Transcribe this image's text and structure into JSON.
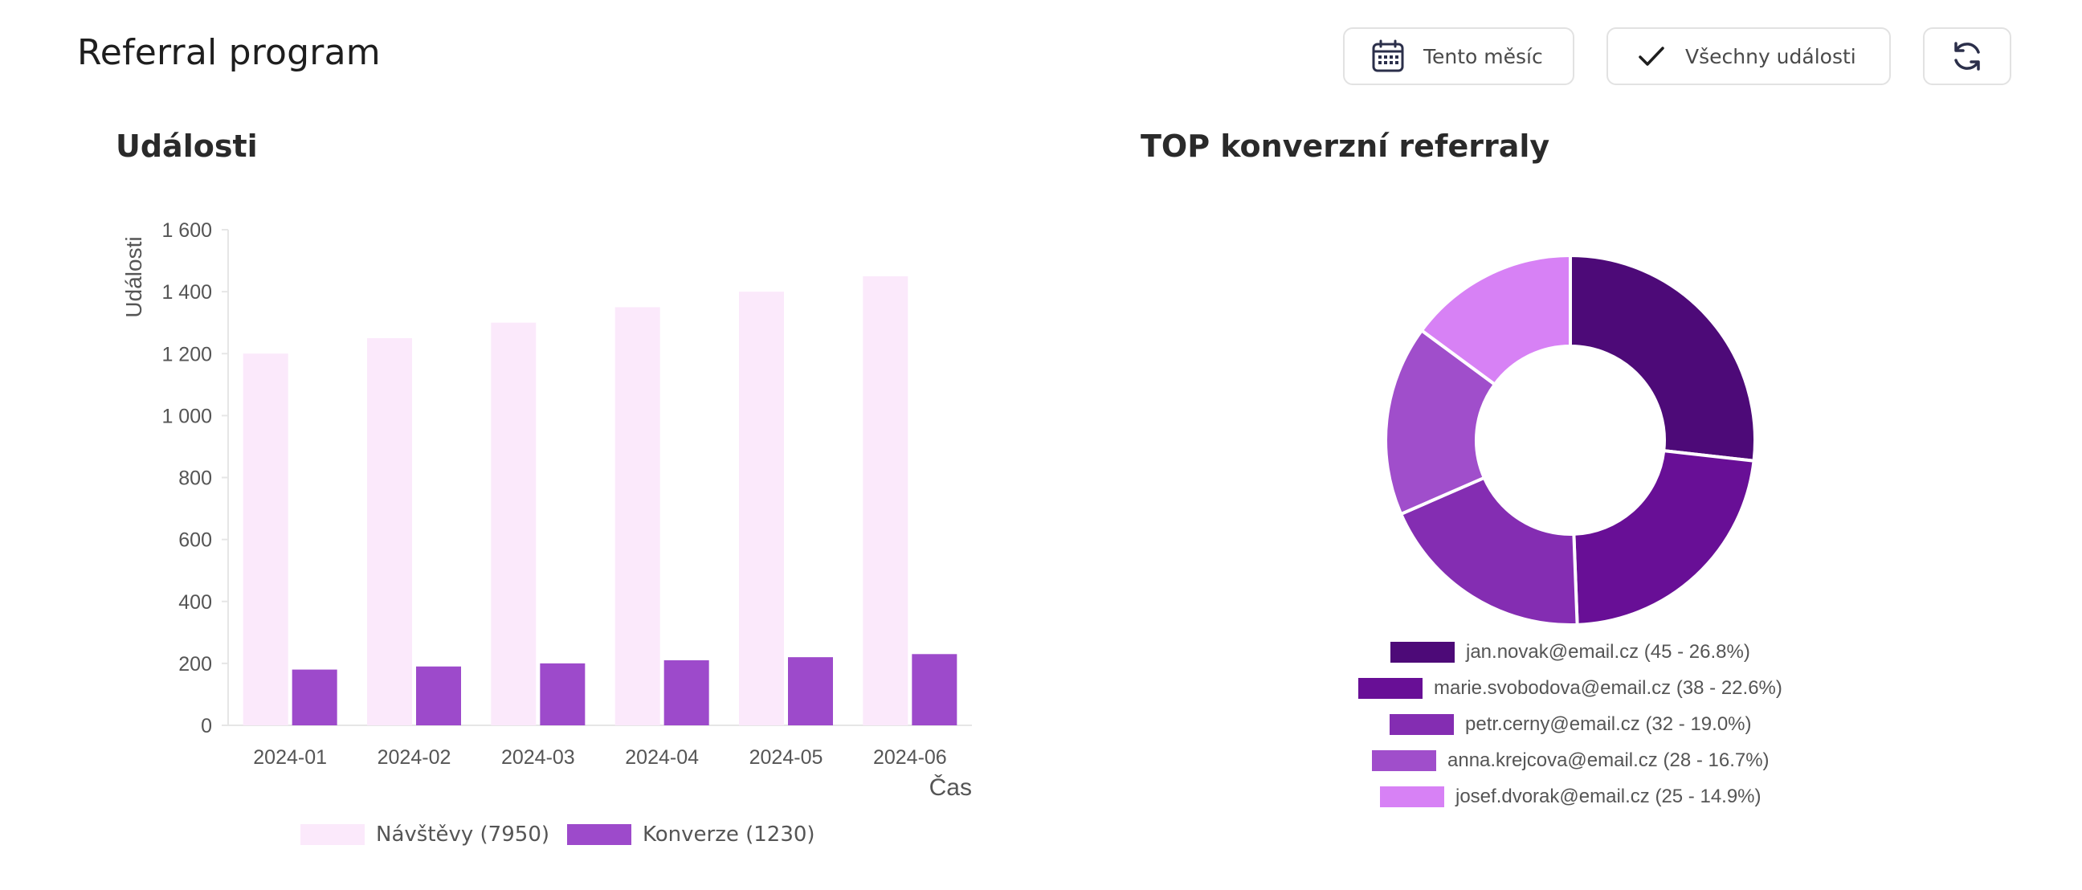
{
  "page": {
    "title": "Referral program"
  },
  "toolbar": {
    "period_label": "Tento měsíc",
    "events_filter_label": "Všechny události"
  },
  "events": {
    "title": "Události",
    "chart_data": {
      "type": "bar",
      "title": "Události",
      "xlabel": "Čas",
      "ylabel": "Události",
      "categories": [
        "2024-01",
        "2024-02",
        "2024-03",
        "2024-04",
        "2024-05",
        "2024-06"
      ],
      "ylim": [
        0,
        1600
      ],
      "yticks": [
        0,
        200,
        400,
        600,
        800,
        1000,
        1200,
        1400,
        1600
      ],
      "ytick_labels": [
        "0",
        "200",
        "400",
        "600",
        "800",
        "1 000",
        "1 200",
        "1 400",
        "1 600"
      ],
      "series": [
        {
          "name": "Návštěvy",
          "legend": "Návštěvy (7950)",
          "color": "#fbe9fb",
          "values": [
            1200,
            1250,
            1300,
            1350,
            1400,
            1450
          ]
        },
        {
          "name": "Konverze",
          "legend": "Konverze (1230)",
          "color": "#9d4acb",
          "values": [
            180,
            190,
            200,
            210,
            220,
            230
          ]
        }
      ]
    }
  },
  "top_referrals": {
    "title": "TOP konverzní referraly",
    "chart_data": {
      "type": "pie",
      "donut": true,
      "labels": [
        "jan.novak@email.cz",
        "marie.svobodova@email.cz",
        "petr.cerny@email.cz",
        "anna.krejcova@email.cz",
        "josef.dvorak@email.cz"
      ],
      "values": [
        45,
        38,
        32,
        28,
        25
      ],
      "legend_labels": [
        "jan.novak@email.cz (45 - 26.8%)",
        "marie.svobodova@email.cz (38 - 22.6%)",
        "petr.cerny@email.cz (32 - 19.0%)",
        "anna.krejcova@email.cz (28 - 16.7%)",
        "josef.dvorak@email.cz (25 - 14.9%)"
      ],
      "colors": [
        "#4d0a78",
        "#680f96",
        "#842db2",
        "#a04ecb",
        "#d781f5"
      ]
    }
  },
  "icons": {
    "calendar": "calendar-icon",
    "check": "check-icon",
    "refresh": "refresh-icon"
  }
}
